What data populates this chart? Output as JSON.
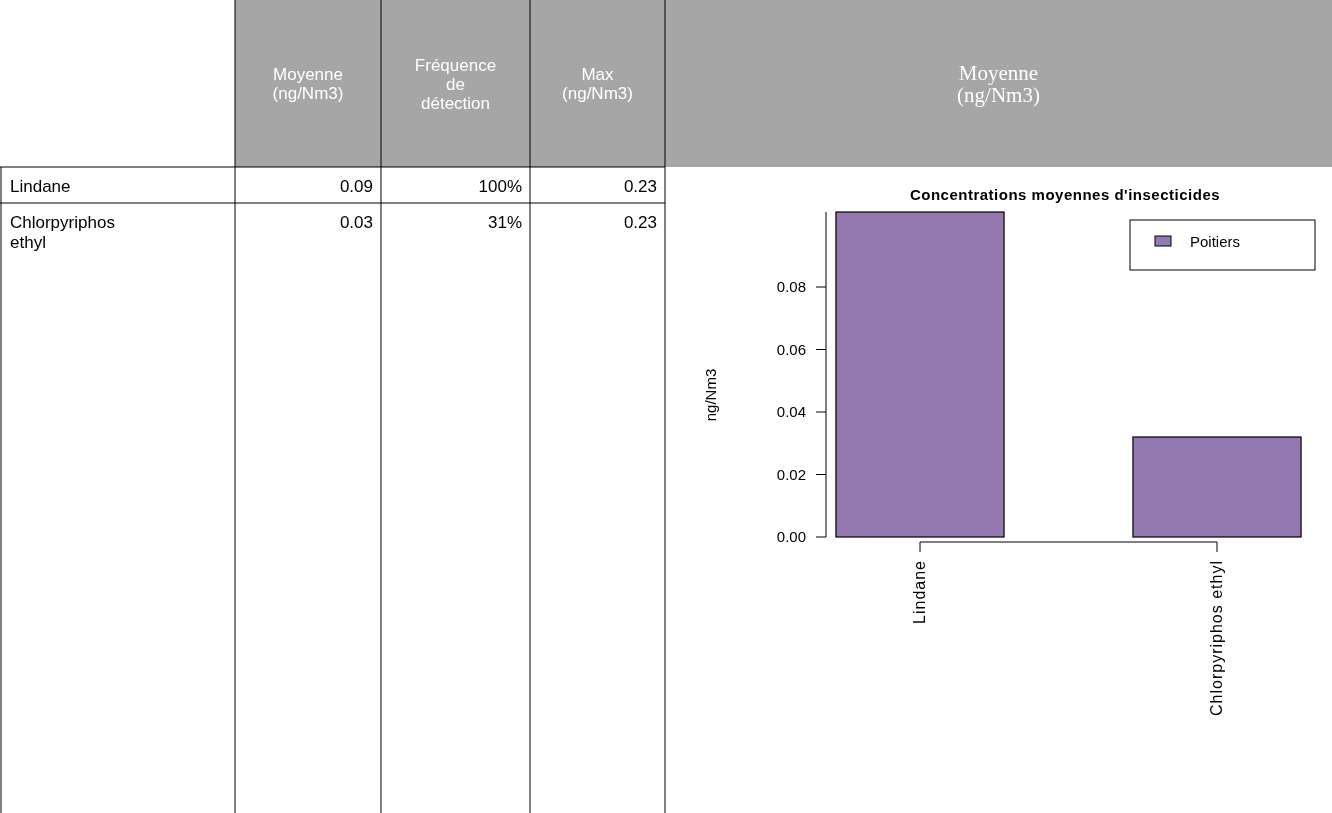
{
  "chart_data": [
    {
      "type": "other",
      "categories": [
        "Lindane",
        "Chlorpyriphos ethyl"
      ],
      "series": [
        {
          "name": "Moyenne (ng/Nm3)",
          "values": [
            0.09,
            0.03
          ]
        },
        {
          "name": "Fréquence de détection",
          "values": [
            100,
            31
          ],
          "value_labels": [
            "100%",
            "31%"
          ]
        },
        {
          "name": "Max (ng/Nm3)",
          "values": [
            0.23,
            0.23
          ]
        }
      ],
      "data_labels": true,
      "annotations": [
        "Moyenne (ng/Nm3)"
      ]
    },
    {
      "type": "bar",
      "title": "Concentrations moyennes d'insecticides",
      "ylabel": "ng/Nm3",
      "categories": [
        "Lindane",
        "Chlorpyriphos ethyl"
      ],
      "series": [
        {
          "name": "Poitiers",
          "color": "#9379b0",
          "values": [
            0.104,
            0.032
          ]
        }
      ],
      "ylim": [
        0,
        0.104
      ],
      "yticks": [
        {
          "value": 0,
          "label": "0.00"
        },
        {
          "value": 0.02,
          "label": "0.02"
        },
        {
          "value": 0.04,
          "label": "0.04"
        },
        {
          "value": 0.06,
          "label": "0.06"
        },
        {
          "value": 0.08,
          "label": "0.08"
        }
      ],
      "legend": "top right",
      "grid": false
    }
  ]
}
